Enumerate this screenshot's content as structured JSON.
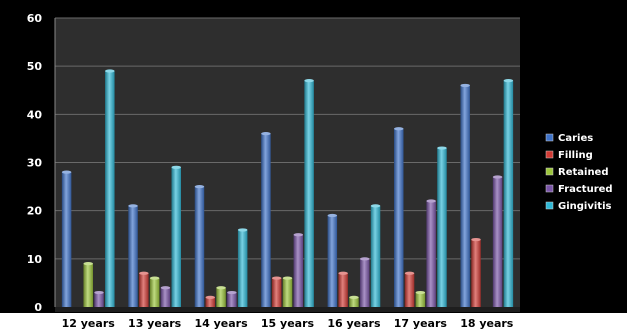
{
  "chart_data": {
    "type": "bar",
    "title": "",
    "xlabel": "",
    "ylabel": "",
    "categories": [
      "12 years",
      "13 years",
      "14 years",
      "15 years",
      "16 years",
      "17 years",
      "18 years"
    ],
    "series": [
      {
        "name": "Caries",
        "color": "#3f73c9",
        "values": [
          28,
          21,
          25,
          36,
          19,
          37,
          46
        ]
      },
      {
        "name": "Filling",
        "color": "#d13b35",
        "values": [
          0,
          7,
          2,
          6,
          7,
          7,
          14
        ]
      },
      {
        "name": "Retained",
        "color": "#9dc63c",
        "values": [
          9,
          6,
          4,
          6,
          2,
          3,
          0
        ]
      },
      {
        "name": "Fractured",
        "color": "#7a55a8",
        "values": [
          3,
          4,
          3,
          15,
          10,
          22,
          27
        ]
      },
      {
        "name": "Gingivitis",
        "color": "#2fb8d6",
        "values": [
          49,
          29,
          16,
          47,
          21,
          33,
          47
        ]
      }
    ],
    "ylim": [
      0,
      60
    ],
    "yticks": [
      0,
      10,
      20,
      30,
      40,
      50,
      60
    ],
    "grid": true,
    "legend": "right",
    "background": "#000000",
    "plot_background": "#2e2e2e"
  }
}
